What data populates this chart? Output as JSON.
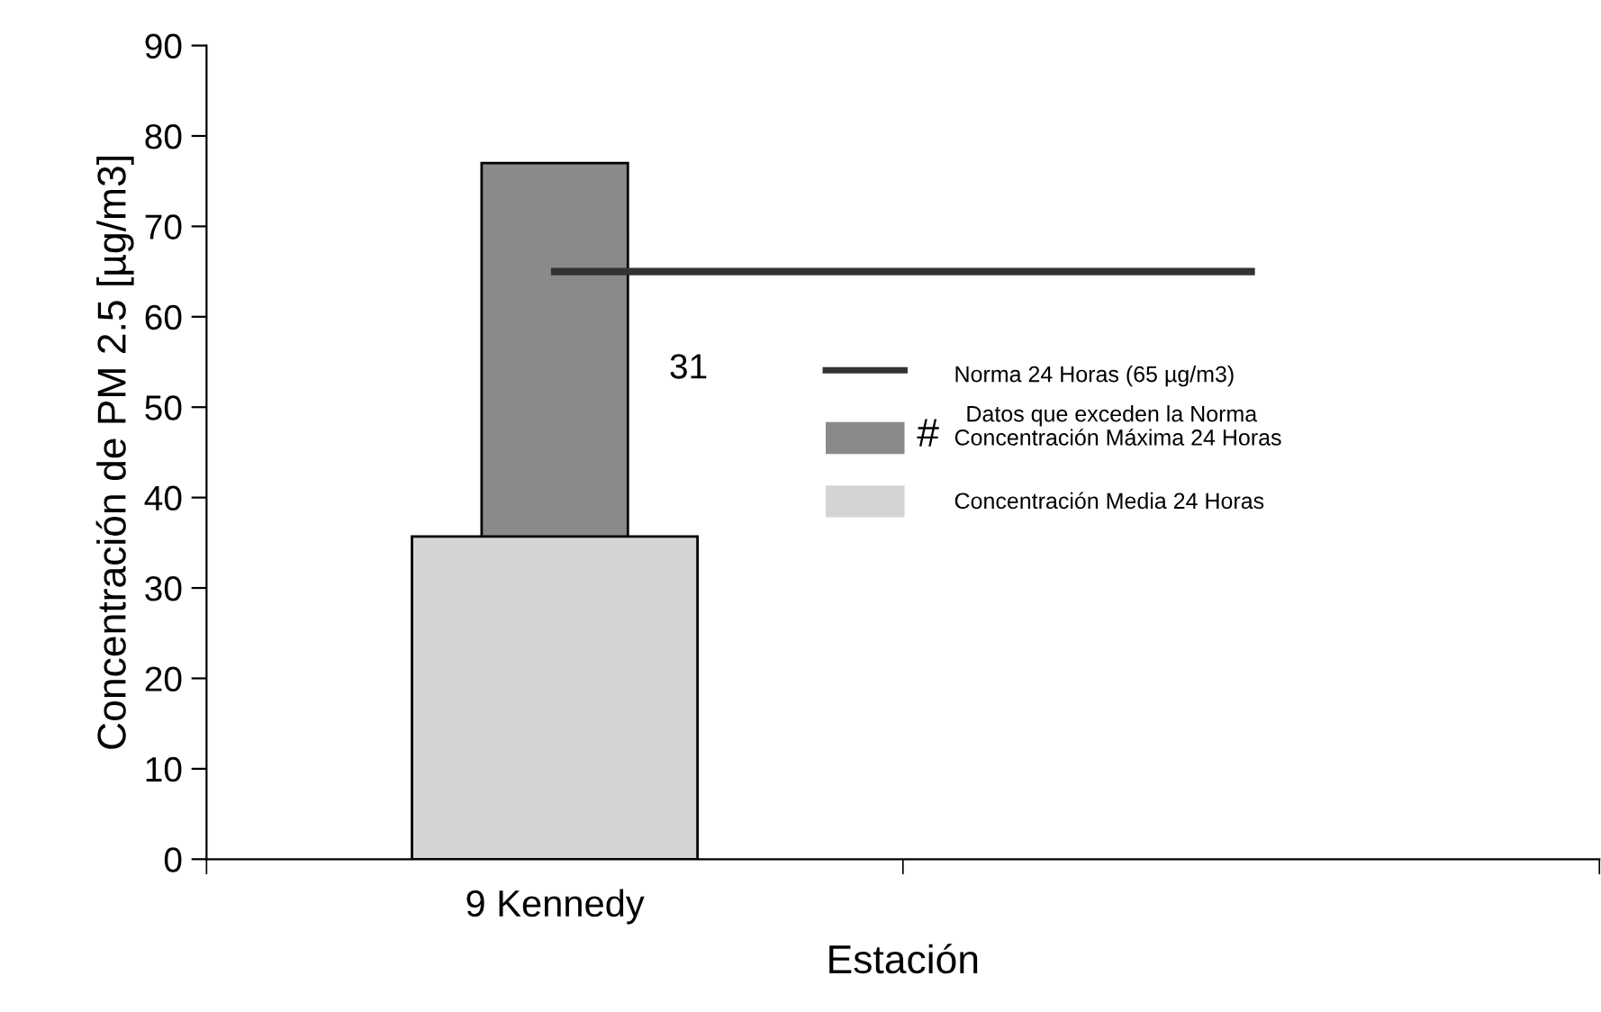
{
  "chart_data": {
    "type": "bar",
    "xlabel": "Estación",
    "ylabel": "Concentración de PM 2.5 [µg/m3]",
    "categories": [
      "9 Kennedy",
      null
    ],
    "ylim": [
      0,
      90
    ],
    "yticks": [
      0,
      10,
      20,
      30,
      40,
      50,
      60,
      70,
      80,
      90
    ],
    "legend": "right",
    "series": [
      {
        "name": "Concentración Media 24 Horas",
        "color": "#d4d4d4",
        "values": [
          35.7,
          null
        ]
      },
      {
        "name": "Concentración Máxima 24 Horas",
        "color": "#8a8a8a",
        "values": [
          77,
          null
        ]
      },
      {
        "name": "Norma 24 Horas (65 µg/m3)",
        "type": "line",
        "color": "#333333",
        "values": [
          65,
          65
        ]
      }
    ],
    "annotations": [
      "31",
      "#",
      "Datos que exceden la Norma"
    ]
  }
}
